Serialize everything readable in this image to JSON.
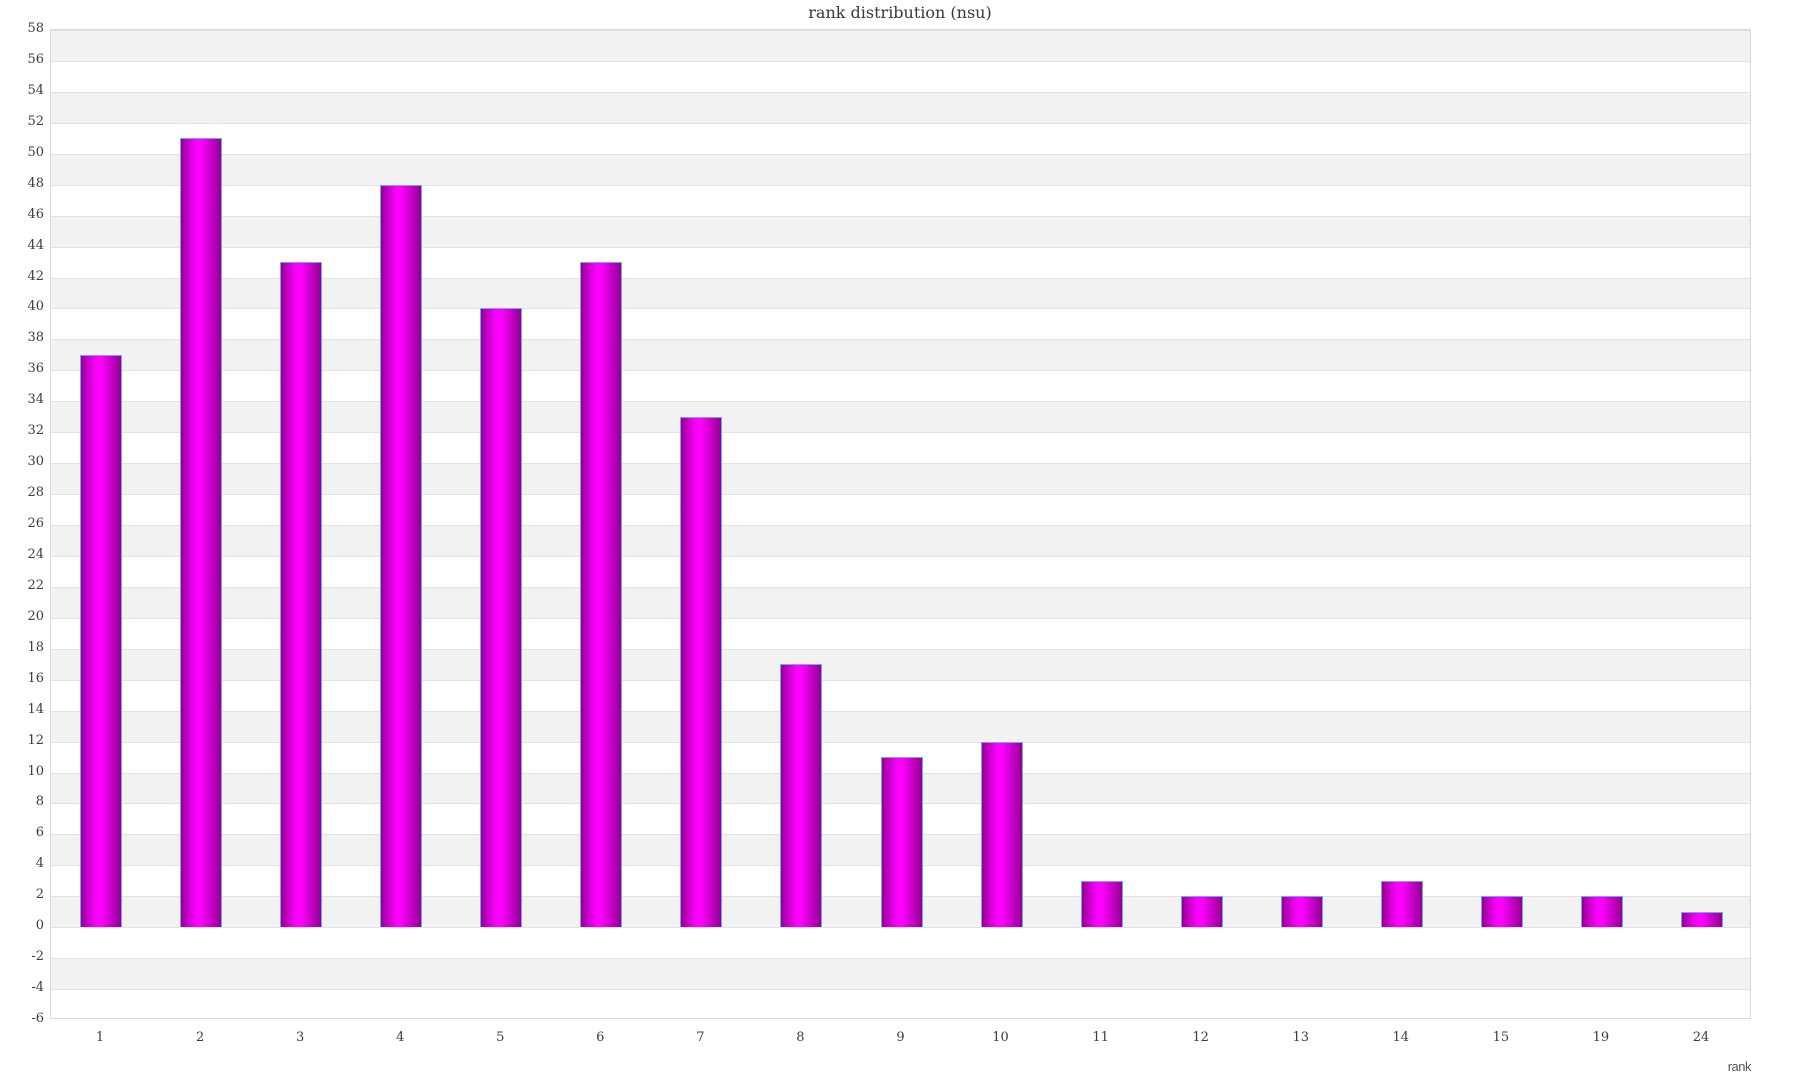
{
  "chart_data": {
    "type": "bar",
    "title": "rank distribution (nsu)",
    "xlabel": "rank",
    "ylabel": "",
    "categories": [
      "1",
      "2",
      "3",
      "4",
      "5",
      "6",
      "7",
      "8",
      "9",
      "10",
      "11",
      "12",
      "13",
      "14",
      "15",
      "19",
      "24"
    ],
    "values": [
      37,
      51,
      43,
      48,
      40,
      43,
      33,
      17,
      11,
      12,
      3,
      2,
      2,
      3,
      2,
      2,
      1
    ],
    "ylim": [
      -6,
      58
    ],
    "ytick_step": 2,
    "grid": "horizontal, alternating shaded bands every 2 units",
    "legend": "none",
    "colors": {
      "bar_edge_dark": "#930093",
      "bar_mid": "#cf00cf",
      "bar_center_bright": "#ff00ff",
      "bar_border": "#6ea6f0",
      "band_gray": "#f2f2f2",
      "band_white": "#ffffff",
      "gridline": "#e3e3e3",
      "plot_border": "#d9d9d9",
      "title_text": "#383838",
      "tick_text": "#3d3d3d",
      "axis_title_text": "#555555",
      "background": "#ffffff"
    }
  }
}
